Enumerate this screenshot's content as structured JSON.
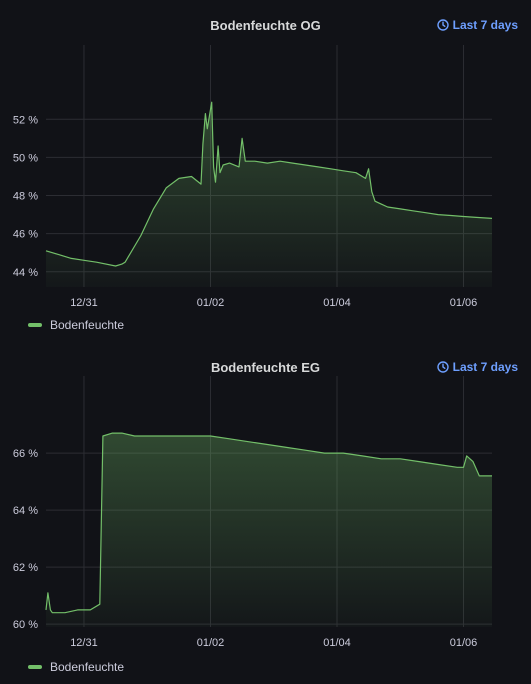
{
  "panels": [
    {
      "title": "Bodenfeuchte OG",
      "time_range_label": "Last 7 days",
      "legend_label": "Bodenfeuchte"
    },
    {
      "title": "Bodenfeuchte EG",
      "time_range_label": "Last 7 days",
      "legend_label": "Bodenfeuchte"
    }
  ],
  "colors": {
    "series": "#73bf69",
    "grid": "#2c2d33",
    "background": "#111217",
    "link": "#6e9fff"
  },
  "icons": {
    "time_range": "clock-icon"
  },
  "chart_data": [
    {
      "type": "area",
      "title": "Bodenfeuchte OG",
      "xlabel": "",
      "ylabel": "",
      "x_ticks": [
        "12/31",
        "01/02",
        "01/04",
        "01/06"
      ],
      "x_tick_days": [
        0,
        2,
        4,
        6
      ],
      "xlim": [
        -0.6,
        6.45
      ],
      "y_ticks": [
        "44 %",
        "46 %",
        "48 %",
        "50 %",
        "52 %"
      ],
      "y_tick_values": [
        44,
        46,
        48,
        50,
        52
      ],
      "ylim": [
        43.2,
        53.8
      ],
      "grid": true,
      "legend": "bottom-left",
      "series": [
        {
          "name": "Bodenfeuchte",
          "x": [
            -0.6,
            -0.4,
            -0.2,
            0,
            0.2,
            0.5,
            0.6,
            0.65,
            0.9,
            1.1,
            1.3,
            1.5,
            1.7,
            1.85,
            1.88,
            1.92,
            1.95,
            2.02,
            2.05,
            2.08,
            2.12,
            2.15,
            2.2,
            2.3,
            2.45,
            2.5,
            2.55,
            2.7,
            2.9,
            3.1,
            3.3,
            3.5,
            3.7,
            3.9,
            4.1,
            4.3,
            4.45,
            4.5,
            4.55,
            4.6,
            4.8,
            5.0,
            5.2,
            5.4,
            5.6,
            5.8,
            6.0,
            6.2,
            6.45
          ],
          "y": [
            45.1,
            44.9,
            44.7,
            44.6,
            44.5,
            44.3,
            44.4,
            44.5,
            45.9,
            47.3,
            48.4,
            48.9,
            49.0,
            48.6,
            50.7,
            52.3,
            51.5,
            52.9,
            49.5,
            48.7,
            50.6,
            49.2,
            49.6,
            49.7,
            49.5,
            51.0,
            49.8,
            49.8,
            49.7,
            49.8,
            49.7,
            49.6,
            49.5,
            49.4,
            49.3,
            49.2,
            48.9,
            49.4,
            48.2,
            47.7,
            47.4,
            47.3,
            47.2,
            47.1,
            47.0,
            46.95,
            46.9,
            46.85,
            46.8
          ]
        }
      ]
    },
    {
      "type": "area",
      "title": "Bodenfeuchte EG",
      "xlabel": "",
      "ylabel": "",
      "x_ticks": [
        "12/31",
        "01/02",
        "01/04",
        "01/06"
      ],
      "x_tick_days": [
        0,
        2,
        4,
        6
      ],
      "xlim": [
        -0.6,
        6.45
      ],
      "y_ticks": [
        "60 %",
        "62 %",
        "64 %",
        "66 %"
      ],
      "y_tick_values": [
        60,
        62,
        64,
        66
      ],
      "ylim": [
        59.9,
        67.3
      ],
      "grid": true,
      "legend": "bottom-left",
      "series": [
        {
          "name": "Bodenfeuchte",
          "x": [
            -0.6,
            -0.57,
            -0.53,
            -0.5,
            -0.3,
            -0.1,
            0.1,
            0.25,
            0.3,
            0.45,
            0.6,
            0.8,
            1.0,
            1.2,
            1.5,
            2.0,
            2.3,
            2.6,
            2.9,
            3.2,
            3.5,
            3.8,
            4.1,
            4.4,
            4.7,
            5.0,
            5.3,
            5.6,
            5.9,
            6.0,
            6.05,
            6.15,
            6.25,
            6.45
          ],
          "y": [
            60.5,
            61.1,
            60.5,
            60.4,
            60.4,
            60.5,
            60.5,
            60.7,
            66.6,
            66.7,
            66.7,
            66.6,
            66.6,
            66.6,
            66.6,
            66.6,
            66.5,
            66.4,
            66.3,
            66.2,
            66.1,
            66.0,
            66.0,
            65.9,
            65.8,
            65.8,
            65.7,
            65.6,
            65.5,
            65.5,
            65.9,
            65.7,
            65.2,
            65.2
          ]
        }
      ]
    }
  ]
}
